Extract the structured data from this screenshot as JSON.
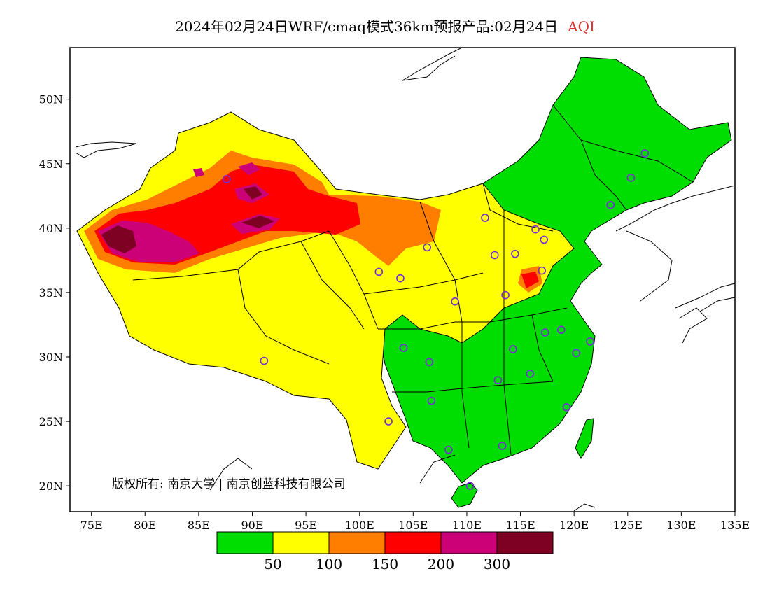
{
  "title": {
    "text": "2024年02月24日WRF/cmaq模式36km预报产品:02月24日",
    "variable": "AQI"
  },
  "copyright": "版权所有: 南京大学 | 南京创蓝科技有限公司",
  "map": {
    "lon_range": [
      73,
      135
    ],
    "lat_range": [
      18,
      54
    ],
    "lon_ticks": [
      "75E",
      "80E",
      "85E",
      "90E",
      "95E",
      "100E",
      "105E",
      "110E",
      "115E",
      "120E",
      "125E",
      "130E",
      "135E"
    ],
    "lat_ticks": [
      "20N",
      "25N",
      "30N",
      "35N",
      "40N",
      "45N",
      "50N"
    ]
  },
  "legend": {
    "colors": [
      "#00dd00",
      "#ffff00",
      "#ff7e00",
      "#ff0000",
      "#cc0077",
      "#7e0023"
    ],
    "labels": [
      "50",
      "100",
      "150",
      "200",
      "300"
    ]
  },
  "stations": [
    [
      87.6,
      43.8
    ],
    [
      91.1,
      29.7
    ],
    [
      101.8,
      36.6
    ],
    [
      103.8,
      36.1
    ],
    [
      106.3,
      38.5
    ],
    [
      111.7,
      40.8
    ],
    [
      112.6,
      37.9
    ],
    [
      114.5,
      38.0
    ],
    [
      116.4,
      39.9
    ],
    [
      117.2,
      39.1
    ],
    [
      117.0,
      36.7
    ],
    [
      113.6,
      34.8
    ],
    [
      108.9,
      34.3
    ],
    [
      104.1,
      30.7
    ],
    [
      106.5,
      29.6
    ],
    [
      106.7,
      26.6
    ],
    [
      102.7,
      25.0
    ],
    [
      108.3,
      22.8
    ],
    [
      110.3,
      20.0
    ],
    [
      113.3,
      23.1
    ],
    [
      119.3,
      26.1
    ],
    [
      115.9,
      28.7
    ],
    [
      112.9,
      28.2
    ],
    [
      114.3,
      30.6
    ],
    [
      117.3,
      31.9
    ],
    [
      118.8,
      32.1
    ],
    [
      120.2,
      30.3
    ],
    [
      121.5,
      31.2
    ],
    [
      126.6,
      45.8
    ],
    [
      125.3,
      43.9
    ],
    [
      123.4,
      41.8
    ]
  ]
}
